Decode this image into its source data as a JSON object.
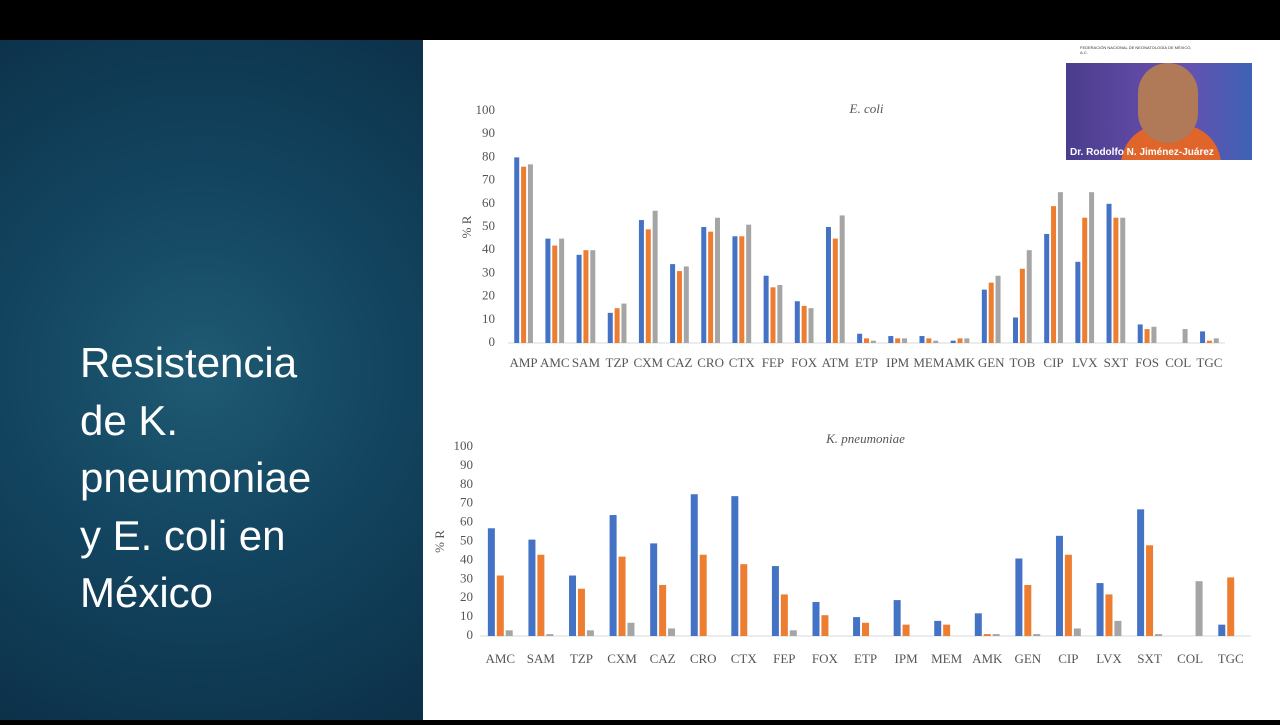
{
  "slide": {
    "title_lines": [
      "Resistencia",
      "de K.",
      "pneumoniae",
      "y E. coli en",
      "México"
    ]
  },
  "video": {
    "speaker_name": "Dr. Rodolfo N. Jiménez-Juárez",
    "logo_text": "FEDERACIÓN NACIONAL DE NEONATOLOGÍA DE MÉXICO, A.C."
  },
  "chart_data": [
    {
      "type": "bar",
      "title": "E. coli",
      "y_label": "% R",
      "categories": [
        "AMP",
        "AMC",
        "SAM",
        "TZP",
        "CXM",
        "CAZ",
        "CRO",
        "CTX",
        "FEP",
        "FOX",
        "ATM",
        "ETP",
        "IPM",
        "MEM",
        "AMK",
        "GEN",
        "TOB",
        "CIP",
        "LVX",
        "SXT",
        "FOS",
        "COL",
        "TGC"
      ],
      "series": [
        {
          "color": "#4472c4",
          "values": [
            80,
            45,
            38,
            13,
            53,
            34,
            50,
            46,
            29,
            18,
            50,
            4,
            3,
            3,
            1,
            23,
            11,
            47,
            35,
            60,
            8,
            0,
            5
          ]
        },
        {
          "color": "#ed7d31",
          "values": [
            76,
            42,
            40,
            15,
            49,
            31,
            48,
            46,
            24,
            16,
            45,
            2,
            2,
            2,
            2,
            26,
            32,
            59,
            54,
            54,
            6,
            0,
            1
          ]
        },
        {
          "color": "#a5a5a5",
          "values": [
            77,
            45,
            40,
            17,
            57,
            33,
            54,
            51,
            25,
            15,
            55,
            1,
            2,
            1,
            2,
            29,
            40,
            65,
            65,
            54,
            7,
            6,
            2
          ]
        }
      ],
      "ylim": [
        0,
        100
      ],
      "yticks": [
        0,
        10,
        20,
        30,
        40,
        50,
        60,
        70,
        80,
        90,
        100
      ],
      "grid": false
    },
    {
      "type": "bar",
      "title": "K. pneumoniae",
      "y_label": "% R",
      "categories": [
        "AMC",
        "SAM",
        "TZP",
        "CXM",
        "CAZ",
        "CRO",
        "CTX",
        "FEP",
        "FOX",
        "ETP",
        "IPM",
        "MEM",
        "AMK",
        "GEN",
        "CIP",
        "LVX",
        "SXT",
        "COL",
        "TGC"
      ],
      "series": [
        {
          "color": "#4472c4",
          "values": [
            57,
            51,
            32,
            64,
            49,
            75,
            74,
            37,
            18,
            10,
            19,
            8,
            12,
            41,
            53,
            28,
            67,
            0,
            6
          ]
        },
        {
          "color": "#ed7d31",
          "values": [
            32,
            43,
            25,
            42,
            27,
            43,
            38,
            22,
            11,
            7,
            6,
            6,
            1,
            27,
            43,
            22,
            48,
            0,
            31
          ]
        },
        {
          "color": "#a5a5a5",
          "values": [
            3,
            1,
            3,
            7,
            4,
            0,
            0,
            3,
            0,
            0,
            0,
            0,
            1,
            1,
            4,
            8,
            1,
            29,
            0
          ]
        }
      ],
      "ylim": [
        0,
        100
      ],
      "yticks": [
        0,
        10,
        20,
        30,
        40,
        50,
        60,
        70,
        80,
        90,
        100
      ],
      "grid": false
    }
  ]
}
